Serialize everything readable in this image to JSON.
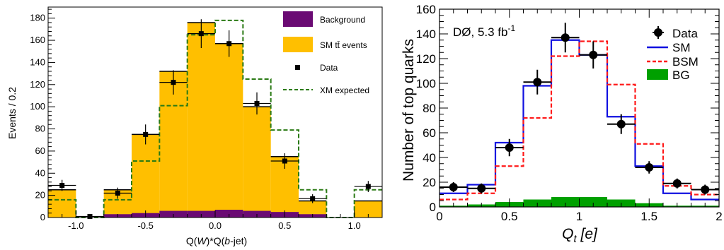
{
  "chart_data": [
    {
      "type": "bar",
      "xlabel": "Q(W)*Q(b-jet)",
      "xlabel_parts": [
        "Q(",
        "W",
        ")*Q(",
        "b",
        "-jet)"
      ],
      "ylabel": "Events / 0.2",
      "xlim": [
        -1.2,
        1.2
      ],
      "ylim": [
        0,
        190
      ],
      "xticks": [
        -1.0,
        -0.5,
        0.0,
        0.5,
        1.0
      ],
      "xtick_labels": [
        "-1.0",
        "-0.5",
        "0.0",
        "0.5",
        "1.0"
      ],
      "yticks": [
        0,
        20,
        40,
        60,
        80,
        100,
        120,
        140,
        160,
        180
      ],
      "ytick_labels": [
        "0",
        "20",
        "40",
        "60",
        "80",
        "100",
        "120",
        "140",
        "160",
        "180"
      ],
      "bin_edges": [
        -1.2,
        -1.0,
        -0.8,
        -0.6,
        -0.4,
        -0.2,
        0.0,
        0.2,
        0.4,
        0.6,
        0.8,
        1.0,
        1.2
      ],
      "legend_position": "top-right",
      "series": [
        {
          "name": "Background",
          "kind": "filled-histogram",
          "color": "#6a0a73",
          "values": [
            0,
            0,
            3,
            4,
            6,
            6,
            7,
            6,
            5,
            3,
            0,
            0
          ]
        },
        {
          "name": "SM tt̄ events",
          "kind": "stacked-histogram",
          "color": "#ffbf00",
          "values": [
            25,
            0,
            25,
            75,
            132,
            176,
            157,
            100,
            55,
            15,
            0,
            15
          ]
        },
        {
          "name": "Data",
          "kind": "points",
          "color": "#000000",
          "values": [
            29,
            1,
            22,
            75,
            122,
            166,
            157,
            103,
            51,
            17,
            null,
            28
          ],
          "errors": [
            5,
            1,
            5,
            9,
            11,
            13,
            12,
            10,
            7,
            4,
            null,
            5
          ]
        },
        {
          "name": "XM expected",
          "kind": "dashed-histogram",
          "color": "#2a7a14",
          "values": [
            16,
            0,
            16,
            51,
            101,
            165,
            178,
            125,
            79,
            25,
            0,
            25
          ]
        }
      ]
    },
    {
      "type": "bar",
      "annotation": "DØ, 5.3 fb",
      "annotation_sup": "-1",
      "xlabel": "Q",
      "xlabel_sub": "t",
      "xlabel_unit": " [e]",
      "ylabel": "Number of top quarks",
      "xlim": [
        0,
        2
      ],
      "ylim": [
        0,
        160
      ],
      "xticks": [
        0,
        0.5,
        1,
        1.5,
        2
      ],
      "xtick_labels": [
        "0",
        "0.5",
        "1",
        "1.5",
        "2"
      ],
      "yticks": [
        0,
        20,
        40,
        60,
        80,
        100,
        120,
        140,
        160
      ],
      "ytick_labels": [
        "0",
        "20",
        "40",
        "60",
        "80",
        "100",
        "120",
        "140",
        "160"
      ],
      "bin_edges": [
        0,
        0.2,
        0.4,
        0.6,
        0.8,
        1.0,
        1.2,
        1.4,
        1.6,
        1.8,
        2.0
      ],
      "legend_position": "top-right",
      "series": [
        {
          "name": "Data",
          "kind": "points",
          "color": "#000000",
          "values": [
            16,
            15,
            48,
            101,
            137,
            123,
            67,
            32,
            19,
            14
          ],
          "errors": [
            4,
            4,
            7,
            10,
            12,
            11,
            8,
            5,
            4,
            4
          ]
        },
        {
          "name": "SM",
          "kind": "line-histogram",
          "color": "#1010e0",
          "values": [
            11,
            18,
            52,
            98,
            135,
            123,
            73,
            33,
            11,
            6
          ]
        },
        {
          "name": "BSM",
          "kind": "dashed-histogram",
          "color": "#ff1a1a",
          "values": [
            6,
            11,
            33,
            72,
            122,
            134,
            99,
            51,
            17,
            10
          ]
        },
        {
          "name": "BG",
          "kind": "filled-histogram",
          "color": "#00a000",
          "values": [
            1,
            2,
            4,
            6,
            8,
            8,
            6,
            3,
            1,
            1
          ]
        }
      ]
    }
  ]
}
